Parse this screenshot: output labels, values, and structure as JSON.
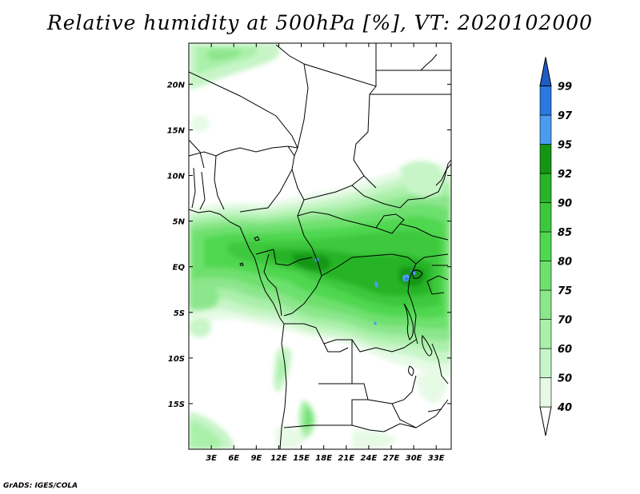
{
  "title": "Relative humidity at 500hPa [%], VT: 2020102000",
  "credit": "GrADS: IGES/COLA",
  "map": {
    "lon_range": [
      0,
      35
    ],
    "lat_range": [
      -20,
      24.5
    ],
    "lon_ticks": [
      {
        "value": 3,
        "label": "3E"
      },
      {
        "value": 6,
        "label": "6E"
      },
      {
        "value": 9,
        "label": "9E"
      },
      {
        "value": 12,
        "label": "12E"
      },
      {
        "value": 15,
        "label": "15E"
      },
      {
        "value": 18,
        "label": "18E"
      },
      {
        "value": 21,
        "label": "21E"
      },
      {
        "value": 24,
        "label": "24E"
      },
      {
        "value": 27,
        "label": "27E"
      },
      {
        "value": 30,
        "label": "30E"
      },
      {
        "value": 33,
        "label": "33E"
      }
    ],
    "lat_ticks": [
      {
        "value": 20,
        "label": "20N"
      },
      {
        "value": 15,
        "label": "15N"
      },
      {
        "value": 10,
        "label": "10N"
      },
      {
        "value": 5,
        "label": "5N"
      },
      {
        "value": 0,
        "label": "EQ"
      },
      {
        "value": -5,
        "label": "5S"
      },
      {
        "value": -10,
        "label": "10S"
      },
      {
        "value": -15,
        "label": "15S"
      }
    ]
  },
  "colorbar": {
    "levels": [
      {
        "label": "40",
        "color": "#e6fae6"
      },
      {
        "label": "50",
        "color": "#c8f5c8"
      },
      {
        "label": "60",
        "color": "#aaf0aa"
      },
      {
        "label": "70",
        "color": "#8ce68c"
      },
      {
        "label": "75",
        "color": "#6ee06e"
      },
      {
        "label": "80",
        "color": "#50d750"
      },
      {
        "label": "85",
        "color": "#3cc83c"
      },
      {
        "label": "90",
        "color": "#28b428"
      },
      {
        "label": "92",
        "color": "#149614"
      },
      {
        "label": "95",
        "color": "#4a9cf0"
      },
      {
        "label": "97",
        "color": "#2a78e0"
      },
      {
        "label": "99",
        "color": "#1e5cc8"
      }
    ],
    "top_arrow_color": "#1e5cc8",
    "bottom_arrow_color": "#ffffff"
  }
}
